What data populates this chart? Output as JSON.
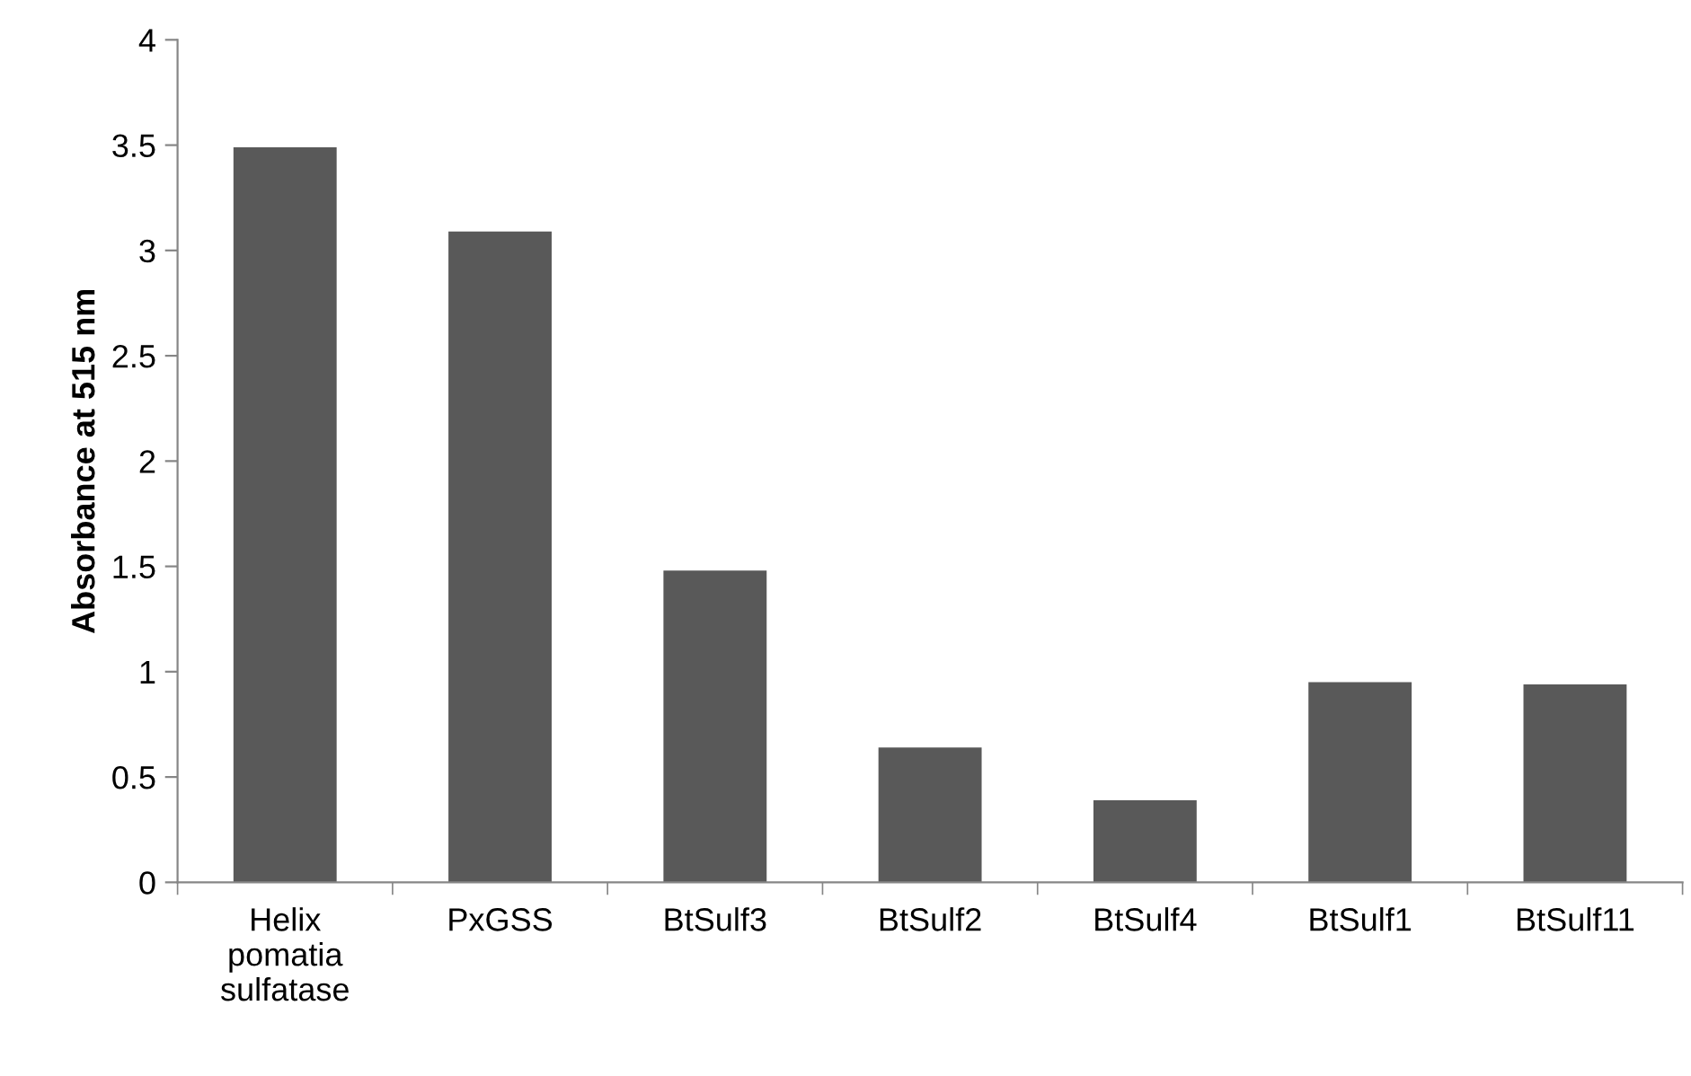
{
  "chart_data": {
    "type": "bar",
    "ylabel": "Absorbance at 515 nm",
    "categories": [
      "Helix\npomatia\nsulfatase",
      "PxGSS",
      "BtSulf3",
      "BtSulf2",
      "BtSulf4",
      "BtSulf1",
      "BtSulf11"
    ],
    "values": [
      3.49,
      3.09,
      1.48,
      0.64,
      0.39,
      0.95,
      0.94
    ],
    "color": "#595959",
    "ylim": [
      0,
      4
    ],
    "yticks": [
      0,
      0.5,
      1,
      1.5,
      2,
      2.5,
      3,
      3.5,
      4
    ],
    "grid": false,
    "legend": false
  }
}
